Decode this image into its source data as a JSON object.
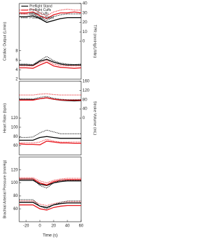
{
  "chart_data": [
    {
      "type": "line",
      "ylabel": "Cardiac Output (L/min)",
      "y2label": "TPR (mmHg/L/Min)",
      "x": [
        -30,
        -20,
        -10,
        0,
        10,
        20,
        30,
        40,
        50,
        60
      ],
      "xlim": [
        -30,
        60
      ],
      "ylim": [
        2,
        18
      ],
      "yticks": [
        2,
        4,
        6,
        8
      ],
      "y2lim": [
        -40,
        40
      ],
      "y2ticks": [
        0,
        10,
        20,
        30,
        40
      ],
      "series": [
        {
          "name": "Preflight Stand",
          "color": "#000000",
          "dash": "solid",
          "axis": "y2",
          "values": [
            26,
            26,
            27,
            24,
            20,
            22,
            24,
            25,
            25,
            25
          ]
        },
        {
          "name": "Preflight Cuffs",
          "color": "#e8141b",
          "dash": "solid",
          "axis": "y2",
          "values": [
            30,
            30,
            31,
            27,
            24,
            28,
            30,
            30,
            31,
            30
          ]
        },
        {
          "name": "Inflight Cuffs",
          "color": "#e8141b",
          "dash": "dotted",
          "axis": "y2",
          "values": [
            33,
            33,
            34,
            30,
            27,
            31,
            33,
            34,
            33,
            33
          ]
        },
        {
          "name": "Postflight Stand",
          "color": "#000000",
          "dash": "dotted",
          "axis": "y2",
          "values": [
            29,
            29,
            29,
            25,
            22,
            26,
            28,
            29,
            29,
            29
          ]
        },
        {
          "color": "#000000",
          "dash": "solid",
          "values": [
            5.0,
            5.0,
            4.9,
            5.8,
            6.2,
            5.6,
            5.2,
            5.0,
            5.0,
            5.0
          ]
        },
        {
          "color": "#e8141b",
          "dash": "solid",
          "values": [
            4.4,
            4.4,
            4.3,
            5.0,
            5.6,
            4.8,
            4.5,
            4.4,
            4.3,
            4.4
          ]
        },
        {
          "color": "#e8141b",
          "dash": "dotted",
          "values": [
            4.8,
            4.8,
            4.8,
            5.5,
            6.0,
            5.2,
            4.9,
            4.8,
            4.8,
            4.8
          ]
        },
        {
          "color": "#000000",
          "dash": "dotted",
          "values": [
            5.2,
            5.2,
            5.1,
            6.0,
            6.8,
            5.9,
            5.4,
            5.2,
            5.1,
            5.2
          ]
        }
      ]
    },
    {
      "type": "line",
      "ylabel": "Heart Rate (bpm)",
      "y2label": "Stroke Volume (mL)",
      "x": [
        -30,
        -20,
        -10,
        0,
        10,
        20,
        30,
        40,
        50,
        60
      ],
      "xlim": [
        -30,
        60
      ],
      "ylim": [
        40,
        200
      ],
      "yticks": [
        60,
        80,
        100,
        120
      ],
      "y2lim": [
        -160,
        160
      ],
      "y2ticks": [
        0,
        40,
        80,
        120,
        160
      ],
      "series": [
        {
          "color": "#000000",
          "dash": "solid",
          "axis": "y2",
          "values": [
            80,
            80,
            80,
            84,
            88,
            82,
            78,
            76,
            75,
            76
          ]
        },
        {
          "color": "#e8141b",
          "dash": "solid",
          "axis": "y2",
          "values": [
            78,
            78,
            78,
            84,
            88,
            82,
            79,
            78,
            78,
            78
          ]
        },
        {
          "color": "#e8141b",
          "dash": "dotted",
          "axis": "y2",
          "values": [
            100,
            100,
            100,
            104,
            106,
            102,
            100,
            100,
            100,
            100
          ]
        },
        {
          "color": "#000000",
          "dash": "dotted",
          "axis": "y2",
          "values": [
            84,
            84,
            83,
            90,
            94,
            86,
            82,
            80,
            80,
            80
          ]
        },
        {
          "color": "#000000",
          "dash": "solid",
          "values": [
            72,
            72,
            72,
            78,
            80,
            78,
            76,
            76,
            76,
            76
          ]
        },
        {
          "color": "#e8141b",
          "dash": "solid",
          "values": [
            64,
            63,
            63,
            62,
            70,
            68,
            66,
            66,
            65,
            65
          ]
        },
        {
          "color": "#e8141b",
          "dash": "dotted",
          "values": [
            66,
            66,
            66,
            68,
            74,
            70,
            68,
            68,
            68,
            68
          ]
        },
        {
          "color": "#000000",
          "dash": "dotted",
          "values": [
            78,
            78,
            79,
            88,
            94,
            90,
            86,
            86,
            86,
            86
          ]
        }
      ]
    },
    {
      "type": "line",
      "ylabel": "Brachial Arterial Pressure (mmHg)",
      "xlabel": "Time (s)",
      "x": [
        -30,
        -20,
        -10,
        0,
        10,
        20,
        30,
        40,
        50,
        60
      ],
      "xlim": [
        -30,
        60
      ],
      "xticks": [
        -20,
        0,
        20,
        40,
        60
      ],
      "ylim": [
        40,
        140
      ],
      "yticks": [
        60,
        80,
        100,
        120
      ],
      "series": [
        {
          "color": "#000000",
          "dash": "solid",
          "values": [
            104,
            104,
            104,
            98,
            96,
            100,
            102,
            103,
            103,
            103
          ]
        },
        {
          "color": "#e8141b",
          "dash": "solid",
          "values": [
            106,
            106,
            106,
            100,
            97,
            102,
            104,
            105,
            105,
            105
          ]
        },
        {
          "color": "#e8141b",
          "dash": "dotted",
          "values": [
            108,
            108,
            108,
            103,
            100,
            104,
            106,
            107,
            107,
            107
          ]
        },
        {
          "color": "#000000",
          "dash": "dotted",
          "values": [
            106,
            106,
            106,
            96,
            92,
            100,
            104,
            104,
            104,
            104
          ]
        },
        {
          "color": "#000000",
          "dash": "solid",
          "values": [
            70,
            70,
            70,
            64,
            62,
            66,
            68,
            69,
            69,
            69
          ]
        },
        {
          "color": "#e8141b",
          "dash": "solid",
          "values": [
            66,
            66,
            66,
            60,
            58,
            62,
            64,
            65,
            65,
            65
          ]
        },
        {
          "color": "#e8141b",
          "dash": "dotted",
          "values": [
            72,
            72,
            72,
            67,
            65,
            68,
            70,
            71,
            71,
            71
          ]
        },
        {
          "color": "#000000",
          "dash": "dotted",
          "values": [
            74,
            74,
            74,
            64,
            60,
            66,
            70,
            72,
            72,
            72
          ]
        }
      ]
    }
  ]
}
